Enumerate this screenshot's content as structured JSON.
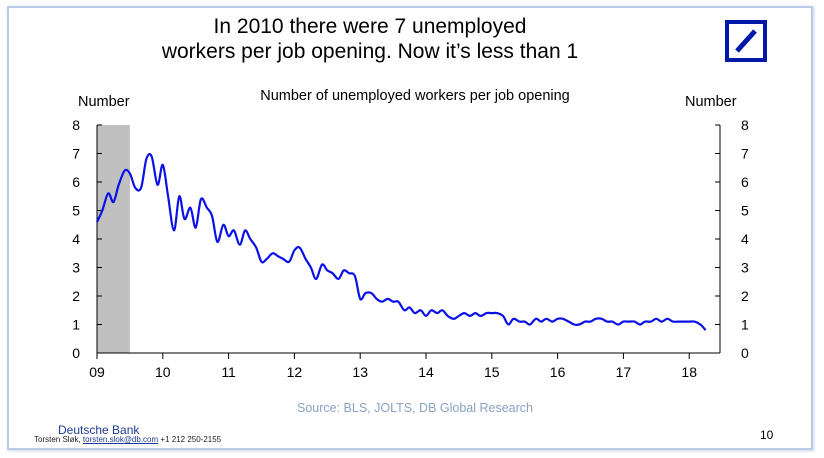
{
  "title_line1": "In 2010 there were 7 unemployed",
  "title_line2": "workers per job opening. Now it’s less than 1",
  "logo": {
    "name": "deutsche-bank-logo",
    "color": "#0018a8"
  },
  "source": "Source: BLS, JOLTS, DB Global Research",
  "footer": {
    "brand": "Deutsche Bank",
    "contact_prefix": "Torsten Sløk, ",
    "email": "torsten.slok@db.com",
    "phone": "+1 212 250-2155",
    "page_number": "10"
  },
  "chart_data": {
    "type": "line",
    "title": "Number of unemployed workers per job opening",
    "ylabel_left": "Number",
    "ylabel_right": "Number",
    "ylim": [
      0,
      8
    ],
    "yticks": [
      "0",
      "1",
      "2",
      "3",
      "4",
      "5",
      "6",
      "7",
      "8"
    ],
    "xlim": [
      2009.0,
      2018.35
    ],
    "xticks": [
      {
        "x": 2009,
        "label": "09"
      },
      {
        "x": 2010,
        "label": "10"
      },
      {
        "x": 2011,
        "label": "11"
      },
      {
        "x": 2012,
        "label": "12"
      },
      {
        "x": 2013,
        "label": "13"
      },
      {
        "x": 2014,
        "label": "14"
      },
      {
        "x": 2015,
        "label": "15"
      },
      {
        "x": 2016,
        "label": "16"
      },
      {
        "x": 2017,
        "label": "17"
      },
      {
        "x": 2018,
        "label": "18"
      }
    ],
    "recession_shading": {
      "start": 2009.0,
      "end": 2009.5,
      "color": "#c0c0c0"
    },
    "line_color": "#0a10e8",
    "grid": false,
    "series": [
      {
        "name": "",
        "x": [
          2009.0,
          2009.08,
          2009.17,
          2009.25,
          2009.33,
          2009.42,
          2009.5,
          2009.58,
          2009.67,
          2009.75,
          2009.83,
          2009.92,
          2010.0,
          2010.08,
          2010.17,
          2010.25,
          2010.33,
          2010.42,
          2010.5,
          2010.58,
          2010.67,
          2010.75,
          2010.83,
          2010.92,
          2011.0,
          2011.08,
          2011.17,
          2011.25,
          2011.33,
          2011.42,
          2011.5,
          2011.58,
          2011.67,
          2011.75,
          2011.83,
          2011.92,
          2012.0,
          2012.08,
          2012.17,
          2012.25,
          2012.33,
          2012.42,
          2012.5,
          2012.58,
          2012.67,
          2012.75,
          2012.83,
          2012.92,
          2013.0,
          2013.08,
          2013.17,
          2013.25,
          2013.33,
          2013.42,
          2013.5,
          2013.58,
          2013.67,
          2013.75,
          2013.83,
          2013.92,
          2014.0,
          2014.08,
          2014.17,
          2014.25,
          2014.33,
          2014.42,
          2014.5,
          2014.58,
          2014.67,
          2014.75,
          2014.83,
          2014.92,
          2015.0,
          2015.08,
          2015.17,
          2015.25,
          2015.33,
          2015.42,
          2015.5,
          2015.58,
          2015.67,
          2015.75,
          2015.83,
          2015.92,
          2016.0,
          2016.08,
          2016.17,
          2016.25,
          2016.33,
          2016.42,
          2016.5,
          2016.58,
          2016.67,
          2016.75,
          2016.83,
          2016.92,
          2017.0,
          2017.08,
          2017.17,
          2017.25,
          2017.33,
          2017.42,
          2017.5,
          2017.58,
          2017.67,
          2017.75,
          2017.83,
          2017.92,
          2018.0,
          2018.08,
          2018.17,
          2018.25
        ],
        "values": [
          4.6,
          5.0,
          5.6,
          5.3,
          5.9,
          6.4,
          6.3,
          5.8,
          5.8,
          6.8,
          6.9,
          5.9,
          6.6,
          5.5,
          4.3,
          5.5,
          4.7,
          5.1,
          4.4,
          5.4,
          5.1,
          4.8,
          3.9,
          4.5,
          4.1,
          4.3,
          3.8,
          4.3,
          4.0,
          3.7,
          3.2,
          3.3,
          3.5,
          3.4,
          3.3,
          3.2,
          3.6,
          3.7,
          3.3,
          3.0,
          2.6,
          3.1,
          2.9,
          2.8,
          2.6,
          2.9,
          2.8,
          2.7,
          1.9,
          2.1,
          2.1,
          1.9,
          1.8,
          1.9,
          1.8,
          1.8,
          1.5,
          1.6,
          1.4,
          1.5,
          1.3,
          1.5,
          1.4,
          1.5,
          1.3,
          1.2,
          1.3,
          1.4,
          1.3,
          1.4,
          1.3,
          1.4,
          1.4,
          1.4,
          1.3,
          1.0,
          1.2,
          1.1,
          1.1,
          1.0,
          1.2,
          1.1,
          1.2,
          1.1,
          1.2,
          1.2,
          1.1,
          1.0,
          1.0,
          1.1,
          1.1,
          1.2,
          1.2,
          1.1,
          1.1,
          1.0,
          1.1,
          1.1,
          1.1,
          1.0,
          1.1,
          1.1,
          1.2,
          1.1,
          1.2,
          1.1,
          1.1,
          1.1,
          1.1,
          1.1,
          1.0,
          0.8
        ]
      }
    ]
  }
}
